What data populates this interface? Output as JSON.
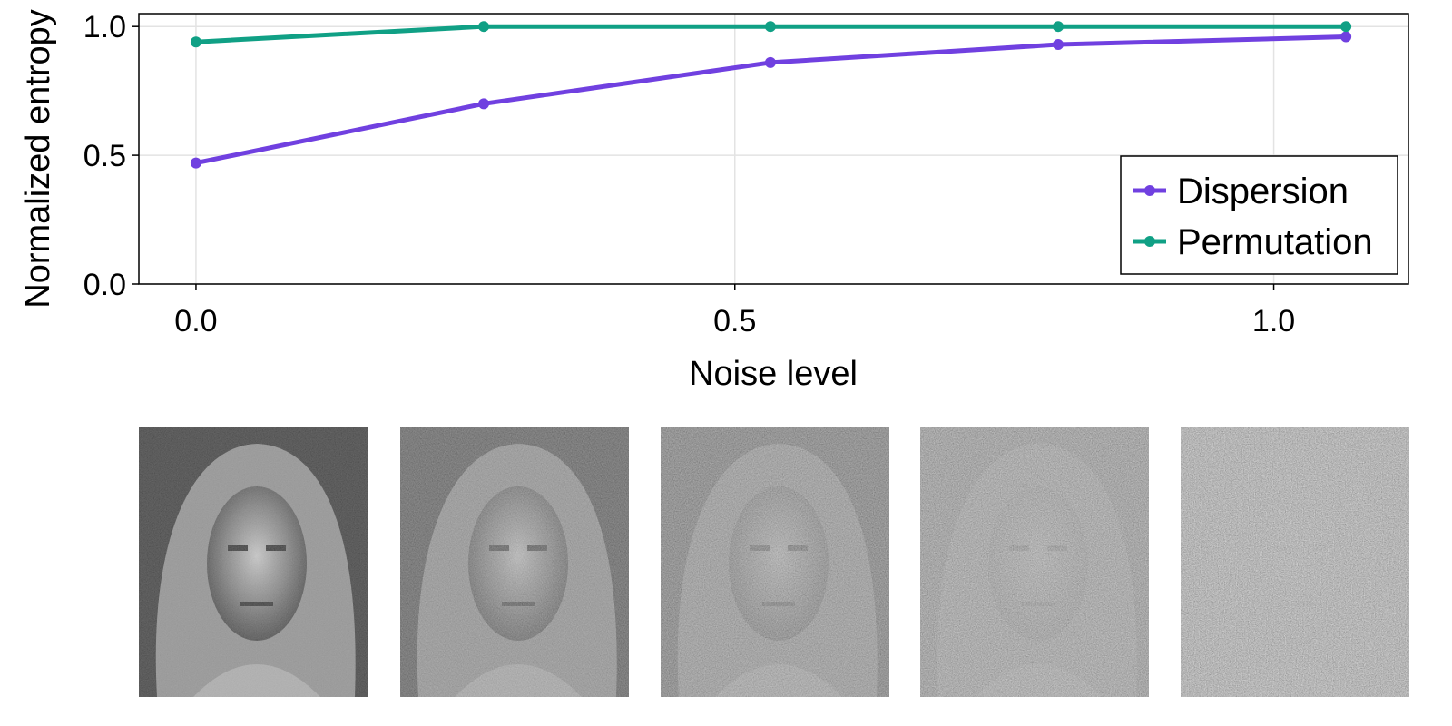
{
  "chart_data": {
    "type": "line",
    "xlabel": "Noise level",
    "ylabel": "Normalized entropy",
    "xlim": [
      -0.053,
      1.125
    ],
    "ylim": [
      0.0,
      1.05
    ],
    "xticks": [
      0.0,
      0.5,
      1.0
    ],
    "yticks": [
      0.0,
      0.5,
      1.0
    ],
    "xtick_labels": [
      "0.0",
      "0.5",
      "1.0"
    ],
    "ytick_labels": [
      "0.0",
      "0.5",
      "1.0"
    ],
    "grid": true,
    "legend_position": "bottom-right",
    "x": [
      0.0,
      0.267,
      0.533,
      0.8,
      1.067
    ],
    "series": [
      {
        "name": "Dispersion",
        "color": "#7040e0",
        "values": [
          0.47,
          0.7,
          0.86,
          0.93,
          0.96
        ]
      },
      {
        "name": "Permutation",
        "color": "#10a085",
        "values": [
          0.94,
          1.0,
          1.0,
          1.0,
          1.0
        ]
      }
    ]
  },
  "noise_images": {
    "count": 5,
    "description_levels": [
      0.0,
      0.267,
      0.533,
      0.8,
      1.067
    ]
  }
}
